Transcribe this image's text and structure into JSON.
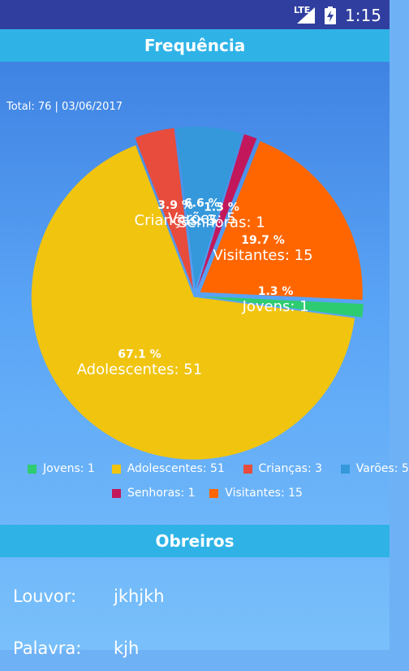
{
  "status_bar": {
    "network": "LTE",
    "time": "1:15",
    "icons": [
      "signal-icon",
      "battery-charging-icon"
    ]
  },
  "header": {
    "title": "Frequência"
  },
  "summary": {
    "total_text": "Total: 76 | 03/06/2017"
  },
  "chart_data": {
    "type": "pie",
    "total": 76,
    "slices": [
      {
        "label": "Jovens",
        "value": 1,
        "percent": "1.3 %",
        "color": "#2ecc71"
      },
      {
        "label": "Adolescentes",
        "value": 51,
        "percent": "67.1 %",
        "color": "#f1c40f"
      },
      {
        "label": "Crianças",
        "value": 3,
        "percent": "3.9 %",
        "color": "#e74c3c"
      },
      {
        "label": "Varões",
        "value": 5,
        "percent": "6.6 %",
        "color": "#3498db"
      },
      {
        "label": "Senhoras",
        "value": 1,
        "percent": "1.3 %",
        "color": "#c2185b"
      },
      {
        "label": "Visitantes",
        "value": 15,
        "percent": "19.7 %",
        "color": "#ff6600"
      }
    ],
    "legend": [
      {
        "label": "Jovens: 1",
        "color": "#2ecc71"
      },
      {
        "label": "Adolescentes: 51",
        "color": "#f1c40f"
      },
      {
        "label": "Crianças: 3",
        "color": "#e74c3c"
      },
      {
        "label": "Varões: 5",
        "color": "#3498db"
      },
      {
        "label": "Senhoras: 1",
        "color": "#c2185b"
      },
      {
        "label": "Visitantes: 15",
        "color": "#ff6600"
      }
    ],
    "legend_position": "bottom"
  },
  "section2": {
    "title": "Obreiros"
  },
  "fields": [
    {
      "label": "Louvor:",
      "value": "jkhjkh"
    },
    {
      "label": "Palavra:",
      "value": "kjh"
    }
  ]
}
